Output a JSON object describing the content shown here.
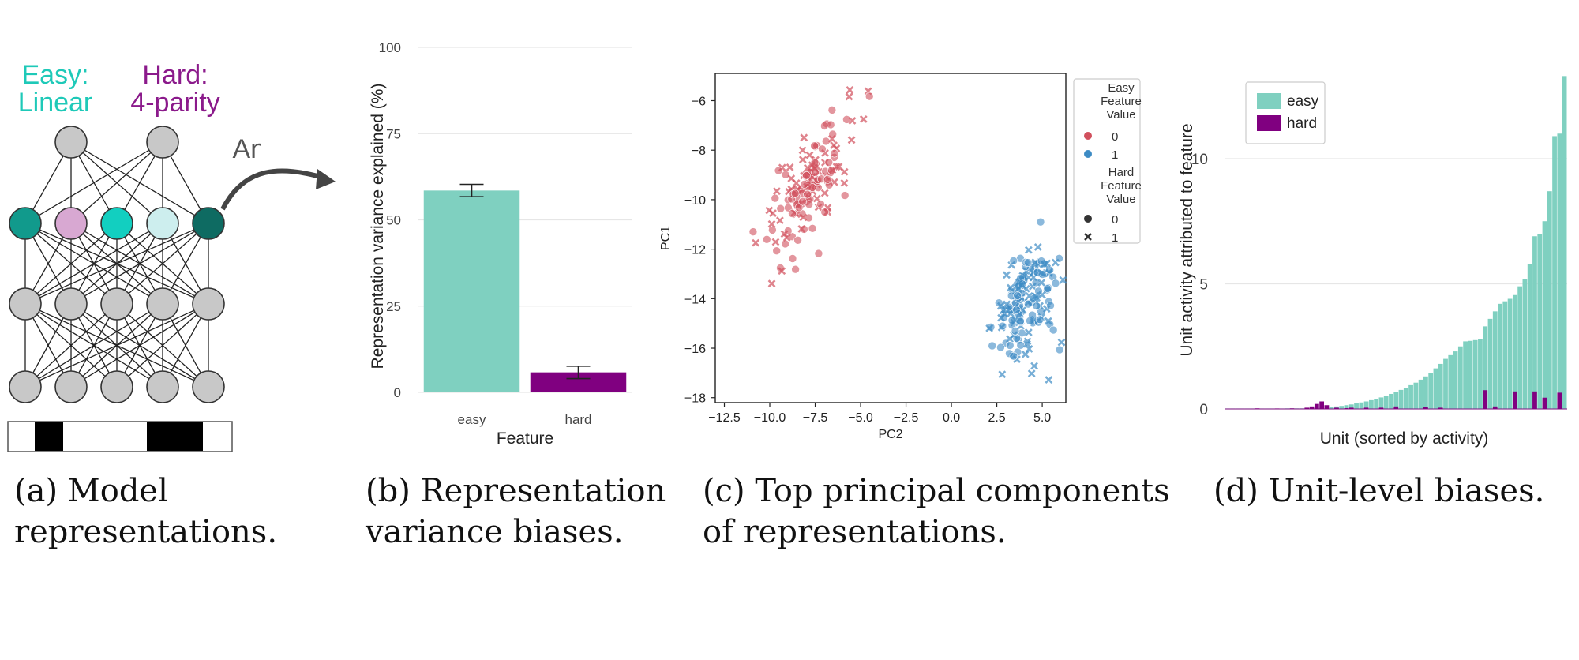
{
  "panel_a": {
    "easy_label_line1": "Easy:",
    "easy_label_line2": "Linear",
    "hard_label_line1": "Hard:",
    "hard_label_line2": "4-parity",
    "arrow_label": "Analyze",
    "caption_line1": "(a) Model",
    "caption_line2": "representations.",
    "colors": {
      "easy": "#1ec9b8",
      "hard": "#8b1a8b",
      "node": "#c8c8c8"
    }
  },
  "chart_data": [
    {
      "type": "bar",
      "categories": [
        "easy",
        "hard"
      ],
      "values": [
        58.5,
        5.8
      ],
      "errors": [
        1.8,
        1.8
      ],
      "colors": [
        "#7fd0c0",
        "#800080"
      ],
      "xlabel": "Feature",
      "ylabel": "Representation variance explained (%)",
      "ylim": [
        0,
        100
      ],
      "yticks": [
        "0",
        "25",
        "50",
        "75",
        "100"
      ],
      "grid": true,
      "caption_line1": "(b)  Representation",
      "caption_line2": "variance biases."
    },
    {
      "type": "scatter",
      "xlabel": "PC2",
      "ylabel": "PC1",
      "xlim": [
        -13,
        6.3
      ],
      "ylim": [
        -18.2,
        -4.9
      ],
      "xticks": [
        "−12.5",
        "−10.0",
        "−7.5",
        "−5.0",
        "−2.5",
        "0.0",
        "2.5",
        "5.0"
      ],
      "yticks": [
        "−6",
        "−8",
        "−10",
        "−12",
        "−14",
        "−16",
        "−18"
      ],
      "clusters": [
        {
          "name": "easy=0",
          "color": "#d1505d",
          "center": [
            -7.8,
            -9.3
          ],
          "n": 150,
          "long_sd": 2.3,
          "short_sd": 0.75
        },
        {
          "name": "easy=1",
          "color": "#3d8bc4",
          "center": [
            4.1,
            -14.3
          ],
          "n": 150,
          "long_sd": 1.7,
          "short_sd": 0.75
        }
      ],
      "legend": {
        "title1": "Easy Feature Value",
        "title1_lines": [
          "Easy",
          "Feature",
          "Value"
        ],
        "easy_values": [
          "0",
          "1"
        ],
        "easy_colors": [
          "#d1505d",
          "#3d8bc4"
        ],
        "title2_lines": [
          "Hard",
          "Feature",
          "Value"
        ],
        "hard_values": [
          "0",
          "1"
        ],
        "hard_markers": [
          "circle",
          "x"
        ]
      },
      "caption_line1": "(c) Top principal components",
      "caption_line2": "of representations."
    },
    {
      "type": "bar",
      "series_names": [
        "easy",
        "hard"
      ],
      "colors": [
        "#7fd0c0",
        "#800080"
      ],
      "xlabel": "Unit (sorted by activity)",
      "ylabel": "Unit activity attributed to feature",
      "ylim": [
        0,
        13.5
      ],
      "yticks": [
        "0",
        "5",
        "10"
      ],
      "easy_values": [
        0.01,
        0.01,
        0.01,
        0.01,
        0.01,
        0.01,
        0.01,
        0.01,
        0.01,
        0.01,
        0.01,
        0.01,
        0.02,
        0.02,
        0.02,
        0.02,
        0.03,
        0.03,
        0.04,
        0.05,
        0.06,
        0.08,
        0.1,
        0.12,
        0.15,
        0.18,
        0.22,
        0.26,
        0.3,
        0.35,
        0.4,
        0.46,
        0.53,
        0.6,
        0.68,
        0.76,
        0.85,
        0.95,
        1.05,
        1.17,
        1.3,
        1.45,
        1.62,
        1.8,
        2.0,
        2.15,
        2.3,
        2.5,
        2.7,
        2.72,
        2.75,
        2.8,
        3.3,
        3.6,
        3.9,
        4.2,
        4.3,
        4.4,
        4.55,
        4.9,
        5.2,
        5.8,
        6.9,
        7.0,
        7.5,
        8.7,
        10.9,
        11.0,
        13.3
      ],
      "hard_values": [
        0,
        0,
        0,
        0,
        0,
        0,
        0.02,
        0,
        0,
        0,
        0.01,
        0,
        0,
        0.02,
        0,
        0,
        0.05,
        0.1,
        0.2,
        0.3,
        0.15,
        0,
        0.05,
        0,
        0.03,
        0.05,
        0,
        0,
        0.05,
        0,
        0,
        0.05,
        0,
        0,
        0.1,
        0,
        0,
        0,
        0,
        0,
        0.08,
        0,
        0,
        0.05,
        0,
        0,
        0,
        0,
        0,
        0,
        0,
        0,
        0.75,
        0,
        0.1,
        0,
        0,
        0,
        0.7,
        0,
        0,
        0,
        0.7,
        0,
        0.45,
        0,
        0,
        0.65,
        0
      ],
      "caption_line1": "(d) Unit-level biases."
    }
  ]
}
